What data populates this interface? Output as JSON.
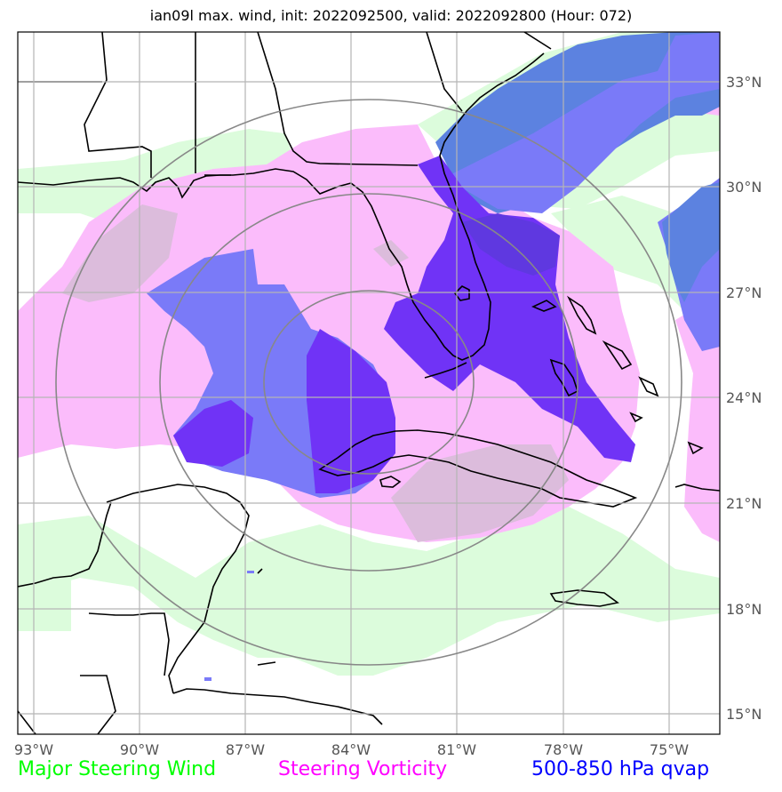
{
  "title": "ian09l max. wind, init: 2022092500, valid: 2022092800 (Hour: 072)",
  "map": {
    "lon_range": [
      -93.0,
      -73.0
    ],
    "lat_range": [
      14.5,
      34.5
    ],
    "lon_ticks": [
      "93°W",
      "90°W",
      "87°W",
      "84°W",
      "81°W",
      "78°W",
      "75°W"
    ],
    "lat_ticks": [
      "33°N",
      "30°N",
      "27°N",
      "24°N",
      "21°N",
      "18°N",
      "15°N"
    ],
    "range_rings": 3,
    "colors": {
      "wind": "#dcfcdc",
      "vorticity": "#fbbcfb",
      "vort_overlap": "#dcbcdc",
      "qvap_light": "#7a7af8",
      "qvap_mid": "#5c82e0",
      "qvap_dark": "#7033f6",
      "qvap_darker": "#5f38e0",
      "grid": "#b5b5b5",
      "ring": "#888888",
      "coast": "#000000"
    }
  },
  "legend": {
    "wind": {
      "label": "Major Steering Wind",
      "color": "#00ff00"
    },
    "vorticity": {
      "label": "Steering Vorticity",
      "color": "#ff00ff"
    },
    "qvap": {
      "label": "500-850 hPa qvap",
      "color": "#0000ff"
    }
  }
}
